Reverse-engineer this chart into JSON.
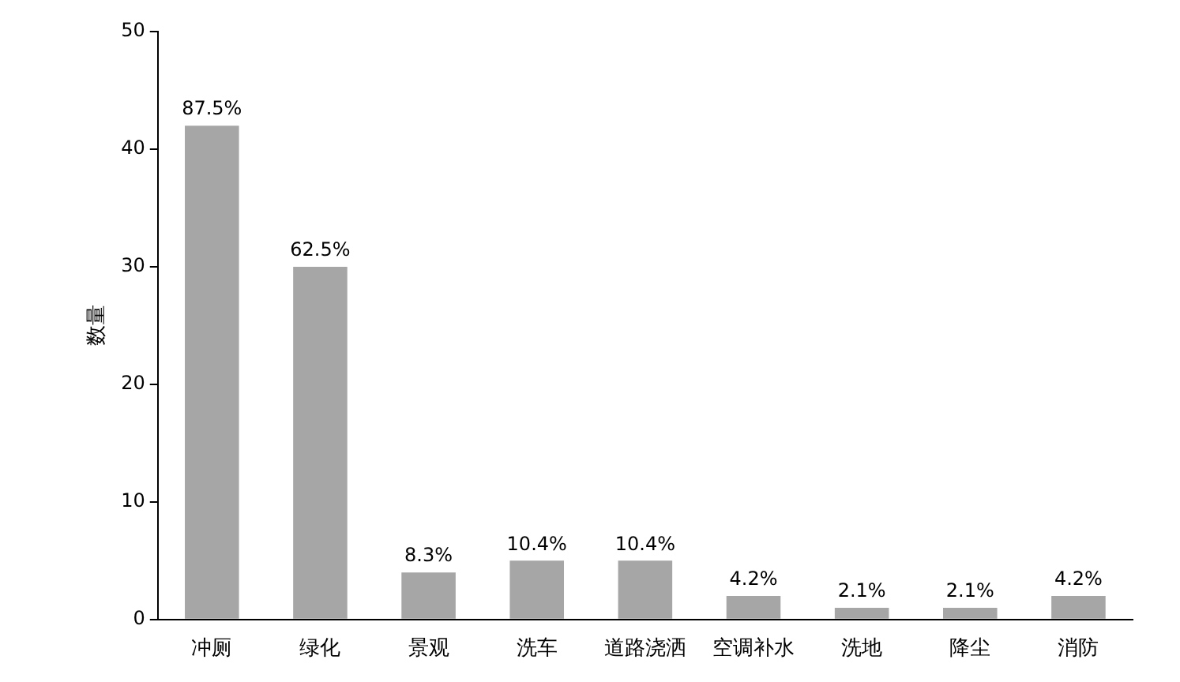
{
  "chart_data": {
    "type": "bar",
    "ylabel": "数量",
    "categories": [
      "冲厕",
      "绿化",
      "景观",
      "洗车",
      "道路浇洒",
      "空调补水",
      "洗地",
      "降尘",
      "消防"
    ],
    "values": [
      42,
      30,
      4,
      5,
      5,
      2,
      1,
      1,
      2
    ],
    "annotations": [
      {
        "text": "87.5%",
        "x": "冲厕",
        "y": 42
      },
      {
        "text": "62.5%",
        "x": "绿化",
        "y": 30
      },
      {
        "text": "8.3%",
        "x": "景观",
        "y": 4
      },
      {
        "text": "10.4%",
        "x": "洗车",
        "y": 5
      },
      {
        "text": "10.4%",
        "x": "道路浇洒",
        "y": 5
      },
      {
        "text": "4.2%",
        "x": "空调补水",
        "y": 2
      },
      {
        "text": "2.1%",
        "x": "洗地",
        "y": 1
      },
      {
        "text": "2.1%",
        "x": "降尘",
        "y": 1
      },
      {
        "text": "4.2%",
        "x": "消防",
        "y": 2
      }
    ],
    "color": "#a6a6a6",
    "ylim": [
      0,
      50
    ],
    "yticks": [
      0,
      10,
      20,
      30,
      40,
      50
    ],
    "grid": false,
    "legend": false
  }
}
